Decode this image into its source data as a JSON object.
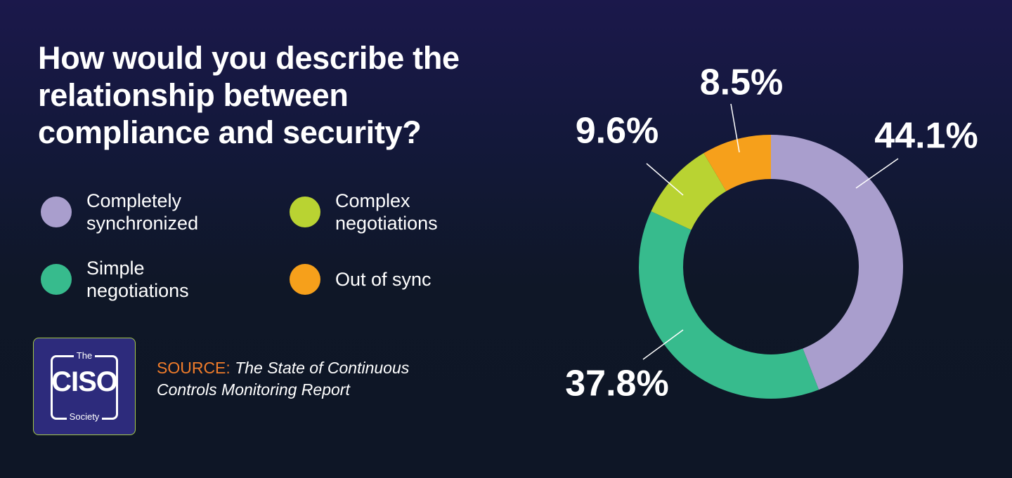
{
  "chart_data": {
    "type": "donut",
    "title": "How would you describe the relationship between compliance and security?",
    "categories": [
      "Completely synchronized",
      "Simple negotiations",
      "Complex negotiations",
      "Out of sync"
    ],
    "values": [
      44.1,
      37.8,
      9.6,
      8.5
    ],
    "value_labels": [
      "44.1%",
      "37.8%",
      "9.6%",
      "8.5%"
    ],
    "colors": [
      "#a99ecd",
      "#37bb8d",
      "#b9d332",
      "#f6a01b"
    ]
  },
  "source": {
    "label": "SOURCE:",
    "text": "The State of Continuous Controls Monitoring Report"
  },
  "logo": {
    "top": "The",
    "main": "CISO",
    "bottom": "Society"
  }
}
